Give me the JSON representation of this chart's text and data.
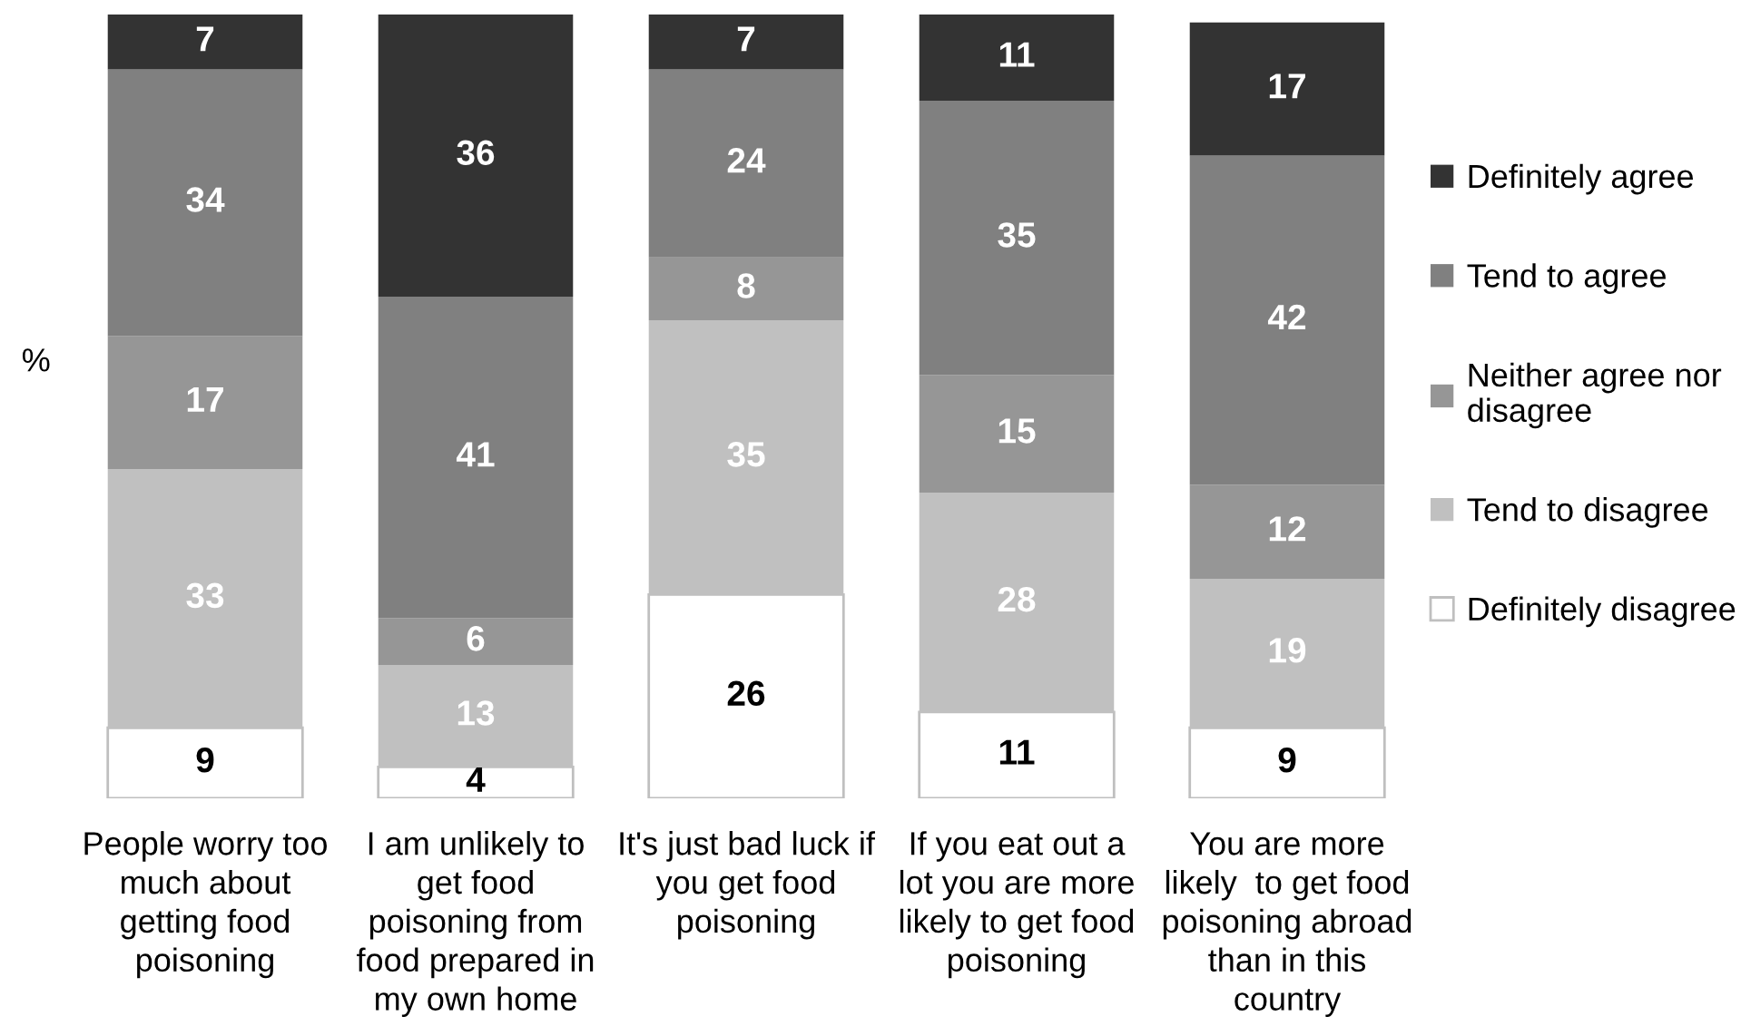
{
  "chart_data": {
    "type": "bar",
    "stacked": true,
    "ylabel": "%",
    "data_labels": true,
    "legend": "right",
    "tick_labels": "x",
    "categories": [
      "People worry too\nmuch about\ngetting food\npoisoning",
      "I am unlikely to\nget food\npoisoning from\nfood prepared in\nmy own home",
      "It's just bad luck if\nyou get food\npoisoning",
      "If you eat out a\nlot you are more\nlikely to get food\npoisoning",
      "You are more\nlikely  to get food\npoisoning abroad\nthan in this\ncountry"
    ],
    "series": [
      {
        "name": "Definitely disagree",
        "color": "#ffffff",
        "values": [
          9,
          4,
          26,
          11,
          9
        ]
      },
      {
        "name": "Tend to disagree",
        "color": "#c0c0c0",
        "values": [
          33,
          13,
          35,
          28,
          19
        ]
      },
      {
        "name": "Neither agree nor\ndisagree",
        "color": "#969696",
        "values": [
          17,
          6,
          8,
          15,
          12
        ]
      },
      {
        "name": "Tend to agree",
        "color": "#808080",
        "values": [
          34,
          41,
          24,
          35,
          42
        ]
      },
      {
        "name": "Definitely agree",
        "color": "#333333",
        "values": [
          7,
          36,
          7,
          11,
          17
        ]
      }
    ]
  }
}
